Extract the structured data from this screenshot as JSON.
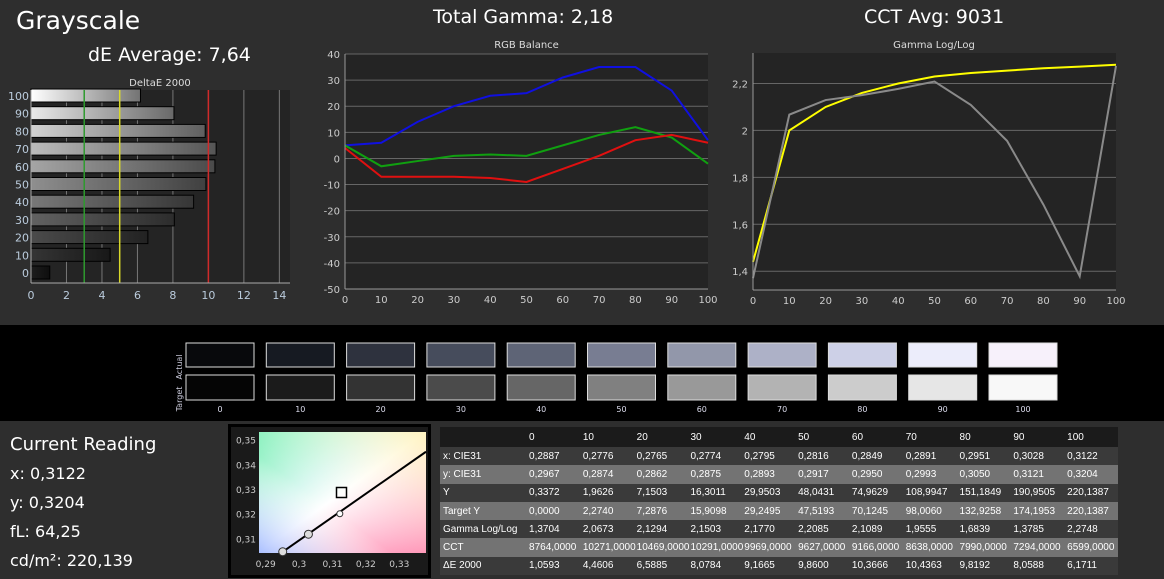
{
  "header": {
    "title": "Grayscale",
    "de_average": "dE Average: 7,64",
    "total_gamma": "Total Gamma: 2,18",
    "cct_avg": "CCT Avg: 9031"
  },
  "deltae_chart": {
    "title": "DeltaE 2000",
    "type": "bar",
    "categories": [
      "0",
      "10",
      "20",
      "30",
      "40",
      "50",
      "60",
      "70",
      "80",
      "90",
      "100"
    ],
    "values": [
      1.0593,
      4.4606,
      6.5885,
      8.0784,
      9.1665,
      9.86,
      10.3666,
      10.4363,
      9.8192,
      8.0588,
      6.1711
    ],
    "xlim": [
      0,
      14.6
    ],
    "xticks": [
      "0",
      "2",
      "4",
      "6",
      "8",
      "10",
      "12",
      "14"
    ],
    "thresholds": [
      {
        "value": 3,
        "color": "#2e9a2e"
      },
      {
        "value": 5,
        "color": "#d8d82a"
      },
      {
        "value": 10,
        "color": "#d02a2a"
      }
    ]
  },
  "chart_data": [
    {
      "type": "line",
      "title": "RGB Balance",
      "x": [
        0,
        10,
        20,
        30,
        40,
        50,
        60,
        70,
        80,
        90,
        100
      ],
      "ylim": [
        -50,
        40
      ],
      "yticks": [
        "40",
        "30",
        "20",
        "10",
        "0",
        "-10",
        "-20",
        "-30",
        "-40",
        "-50"
      ],
      "xticks": [
        "0",
        "10",
        "20",
        "30",
        "40",
        "50",
        "60",
        "70",
        "80",
        "90",
        "100"
      ],
      "series": [
        {
          "color": "#1010e0",
          "values": [
            5,
            6,
            14,
            20,
            24,
            25,
            31,
            35,
            35,
            26,
            7
          ]
        },
        {
          "color": "#10a010",
          "values": [
            5,
            -3,
            -1,
            1,
            1.5,
            1,
            5,
            9,
            12,
            8,
            -2
          ]
        },
        {
          "color": "#e01010",
          "values": [
            4,
            -7,
            -7,
            -7,
            -7.5,
            -9,
            -4,
            1,
            7,
            9,
            6
          ]
        }
      ]
    },
    {
      "type": "line",
      "title": "Gamma Log/Log",
      "x": [
        0,
        10,
        20,
        30,
        40,
        50,
        60,
        70,
        80,
        90,
        100
      ],
      "ylim": [
        1.32,
        2.33
      ],
      "yticks": [
        "2,2",
        "2",
        "1,8",
        "1,6",
        "1,4"
      ],
      "xticks": [
        "0",
        "10",
        "20",
        "30",
        "40",
        "50",
        "60",
        "70",
        "80",
        "90",
        "100"
      ],
      "series": [
        {
          "color": "#ffff00",
          "values": [
            1.44,
            2.0,
            2.1,
            2.16,
            2.2,
            2.23,
            2.245,
            2.255,
            2.265,
            2.272,
            2.28
          ]
        },
        {
          "color": "#8a8a8a",
          "values": [
            1.3704,
            2.0673,
            2.1294,
            2.1503,
            2.177,
            2.2085,
            2.1089,
            1.9555,
            1.6839,
            1.3785,
            2.2748
          ]
        }
      ]
    },
    {
      "type": "scatter",
      "title": "",
      "xlim": [
        0.288,
        0.338
      ],
      "ylim": [
        0.3045,
        0.3535
      ],
      "xticks": [
        "0,29",
        "0,3",
        "0,31",
        "0,32",
        "0,33"
      ],
      "yticks": [
        "0,35",
        "0,34",
        "0,33",
        "0,32",
        "0,31"
      ],
      "target": [
        0.3127,
        0.329
      ],
      "points": [
        [
          0.2951,
          0.305
        ],
        [
          0.3028,
          0.3121
        ],
        [
          0.3122,
          0.3204
        ]
      ]
    }
  ],
  "swatches": {
    "row_labels": [
      "Actual",
      "Target"
    ],
    "levels": [
      "0",
      "10",
      "20",
      "30",
      "40",
      "50",
      "60",
      "70",
      "80",
      "90",
      "100"
    ],
    "actual": [
      "#08090c",
      "#161a22",
      "#2e323e",
      "#464c5c",
      "#5e6476",
      "#787d92",
      "#9297aa",
      "#adb1c7",
      "#cdd0e7",
      "#ecedfb",
      "#f7f1fb"
    ],
    "target": [
      "#050505",
      "#1b1b1b",
      "#333333",
      "#4b4b4b",
      "#666666",
      "#808080",
      "#999999",
      "#b3b3b3",
      "#cccccc",
      "#e6e6e6",
      "#f8f8f8"
    ]
  },
  "reading": {
    "title": "Current Reading",
    "x": "x: 0,3122",
    "y": "y: 0,3204",
    "fl": "fL: 64,25",
    "cdm2": "cd/m²: 220,139"
  },
  "table": {
    "headers": [
      "",
      "0",
      "10",
      "20",
      "30",
      "40",
      "50",
      "60",
      "70",
      "80",
      "90",
      "100"
    ],
    "rows": [
      [
        "x: CIE31",
        "0,2887",
        "0,2776",
        "0,2765",
        "0,2774",
        "0,2795",
        "0,2816",
        "0,2849",
        "0,2891",
        "0,2951",
        "0,3028",
        "0,3122"
      ],
      [
        "y: CIE31",
        "0,2967",
        "0,2874",
        "0,2862",
        "0,2875",
        "0,2893",
        "0,2917",
        "0,2950",
        "0,2993",
        "0,3050",
        "0,3121",
        "0,3204"
      ],
      [
        "Y",
        "0,3372",
        "1,9626",
        "7,1503",
        "16,3011",
        "29,9503",
        "48,0431",
        "74,9629",
        "108,9947",
        "151,1849",
        "190,9505",
        "220,1387"
      ],
      [
        "Target Y",
        "0,0000",
        "2,2740",
        "7,2876",
        "15,9098",
        "29,2495",
        "47,5193",
        "70,1245",
        "98,0060",
        "132,9258",
        "174,1953",
        "220,1387"
      ],
      [
        "Gamma Log/Log",
        "1,3704",
        "2,0673",
        "2,1294",
        "2,1503",
        "2,1770",
        "2,2085",
        "2,1089",
        "1,9555",
        "1,6839",
        "1,3785",
        "2,2748"
      ],
      [
        "CCT",
        "8764,0000",
        "10271,0000",
        "10469,0000",
        "10291,0000",
        "9969,0000",
        "9627,0000",
        "9166,0000",
        "8638,0000",
        "7990,0000",
        "7294,0000",
        "6599,0000"
      ],
      [
        "ΔE 2000",
        "1,0593",
        "4,4606",
        "6,5885",
        "8,0784",
        "9,1665",
        "9,8600",
        "10,3666",
        "10,4363",
        "9,8192",
        "8,0588",
        "6,1711"
      ]
    ]
  }
}
